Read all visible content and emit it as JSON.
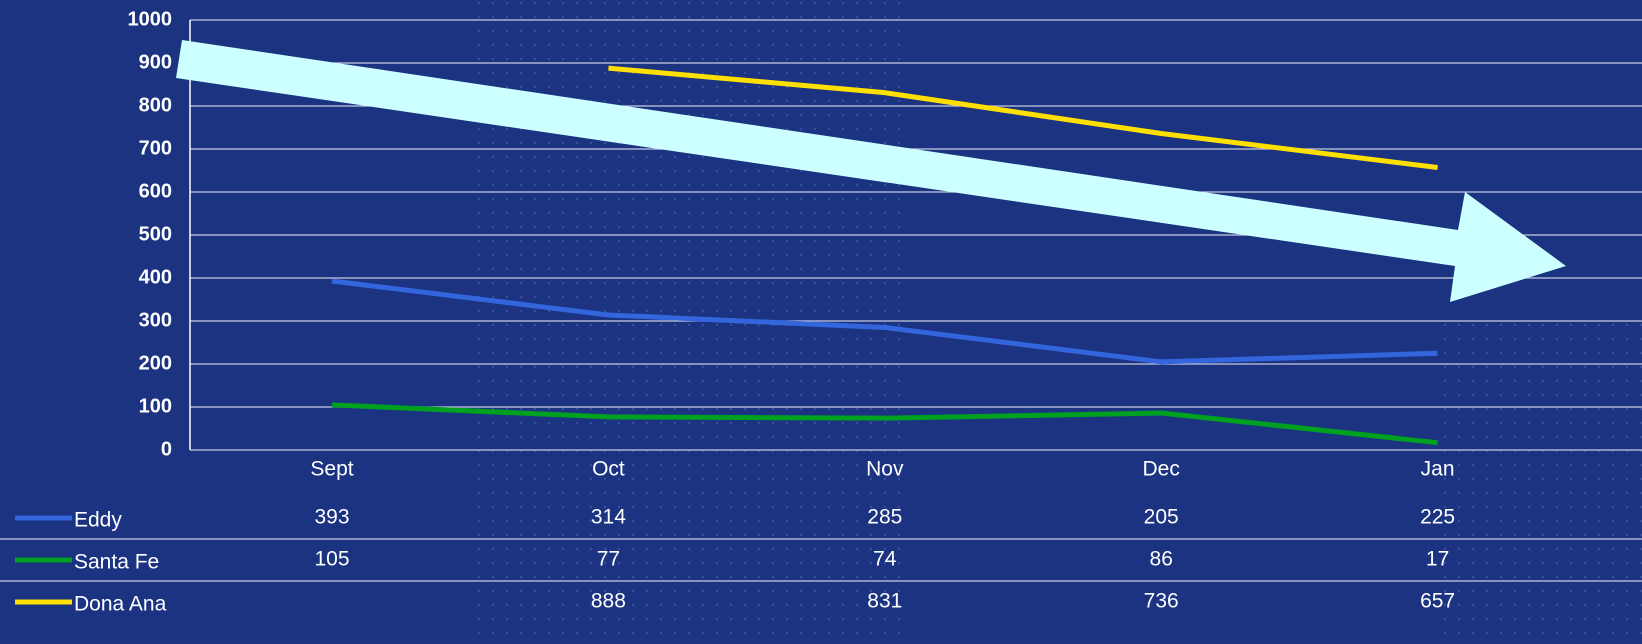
{
  "chart_data": {
    "type": "line",
    "categories": [
      "Sept",
      "Oct",
      "Nov",
      "Dec",
      "Jan"
    ],
    "series": [
      {
        "name": "Eddy",
        "color": "#3366dd",
        "values": [
          393,
          314,
          285,
          205,
          225
        ]
      },
      {
        "name": "Santa Fe",
        "color": "#00a020",
        "values": [
          105,
          77,
          74,
          86,
          17
        ]
      },
      {
        "name": "Dona Ana",
        "color": "#ffe000",
        "values": [
          null,
          888,
          831,
          736,
          657
        ]
      }
    ],
    "ylim": [
      0,
      1000
    ],
    "yticks": [
      0,
      100,
      200,
      300,
      400,
      500,
      600,
      700,
      800,
      900,
      1000
    ],
    "grid": true
  }
}
